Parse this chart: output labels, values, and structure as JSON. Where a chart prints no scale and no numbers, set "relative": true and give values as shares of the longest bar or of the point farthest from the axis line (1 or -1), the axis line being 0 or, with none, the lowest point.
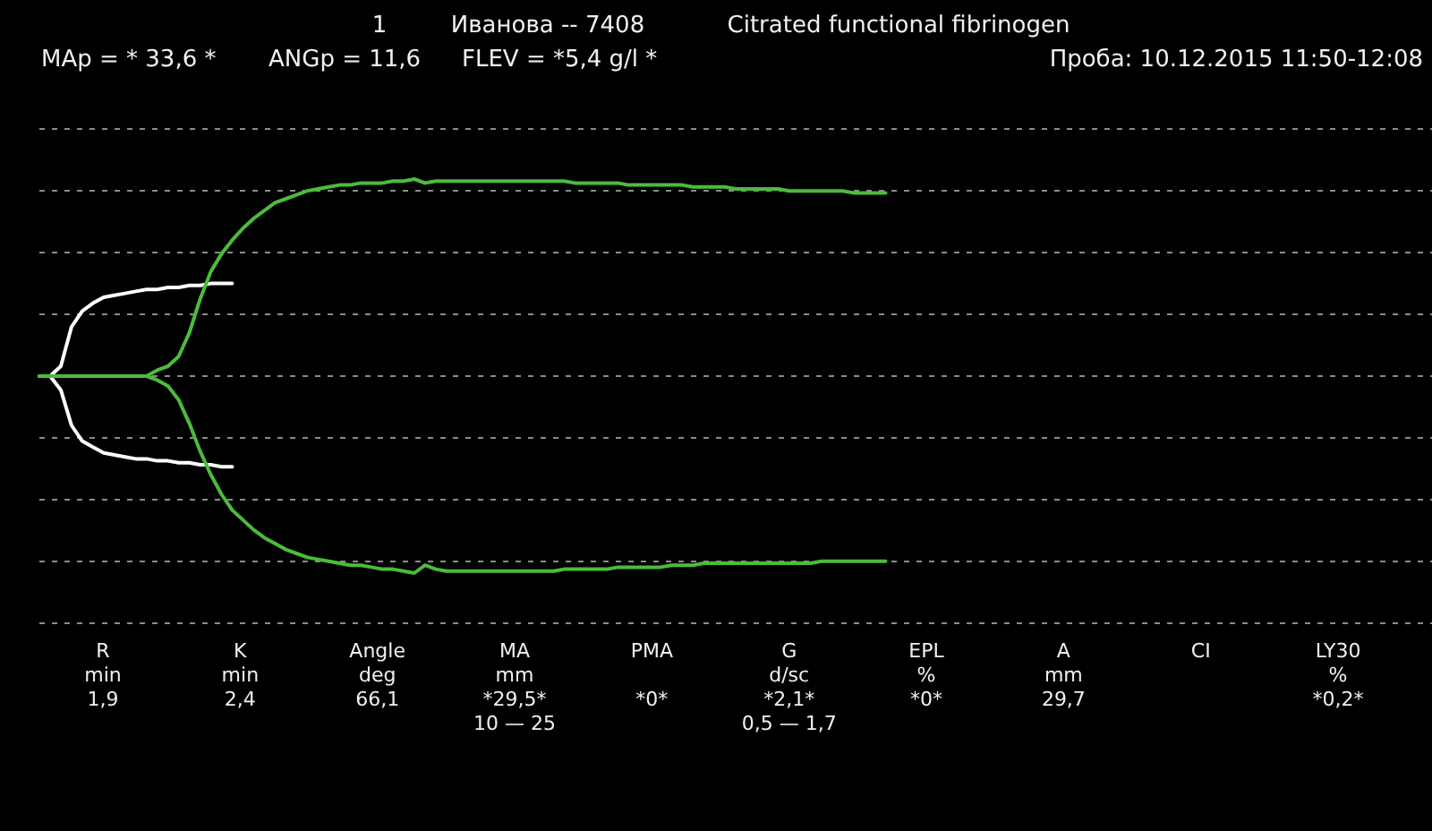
{
  "chart_data": {
    "type": "line",
    "title": "Citrated functional fibrinogen",
    "relative": true,
    "grid": "y",
    "categories": [
      null,
      null,
      null,
      null,
      null,
      null,
      null,
      null,
      null,
      null,
      null,
      null,
      null,
      null,
      null,
      null,
      null,
      null,
      null,
      null,
      null,
      null,
      null,
      null,
      null,
      null,
      null,
      null,
      null,
      null,
      null,
      null,
      null,
      null,
      null,
      null,
      null,
      null,
      null,
      null,
      null,
      null,
      null,
      null,
      null,
      null,
      null,
      null,
      null,
      null,
      null,
      null,
      null,
      null,
      null,
      null,
      null,
      null,
      null,
      null,
      null,
      null,
      null,
      null,
      null,
      null,
      null,
      null,
      null,
      null,
      null,
      null,
      null,
      null,
      null,
      null,
      null,
      null,
      null,
      null,
      null,
      null,
      null,
      null,
      null,
      null,
      null,
      null,
      null,
      null,
      null,
      null,
      null,
      null,
      null,
      null,
      null,
      null,
      null,
      null,
      null,
      null,
      null,
      null,
      null,
      null,
      null,
      null,
      null,
      null,
      null,
      null,
      null,
      null,
      null,
      null,
      null,
      null,
      null,
      null,
      null,
      null,
      null,
      null,
      null,
      null,
      null,
      null,
      null,
      null,
      null
    ],
    "series": [
      {
        "color": "#ffffff",
        "values": [
          0,
          0,
          0.05,
          0.25,
          0.33,
          0.37,
          0.4,
          0.41,
          0.42,
          0.43,
          0.44,
          0.44,
          0.45,
          0.45,
          0.46,
          0.46,
          0.47,
          0.47,
          0.47,
          null,
          null,
          null,
          null,
          null,
          null,
          null,
          null,
          null,
          null,
          null,
          null,
          null,
          null,
          null,
          null,
          null,
          null,
          null,
          null,
          null,
          null,
          null,
          null,
          null,
          null,
          null,
          null,
          null,
          null,
          null,
          null,
          null,
          null,
          null,
          null,
          null,
          null,
          null,
          null,
          null,
          null,
          null,
          null,
          null,
          null,
          null,
          null,
          null,
          null,
          null,
          null,
          null,
          null,
          null,
          null,
          null,
          null,
          null,
          null,
          null,
          null,
          null,
          null,
          null,
          null,
          null,
          null,
          null,
          null,
          null,
          null,
          null,
          null,
          null,
          null,
          null,
          null,
          null,
          null,
          null,
          null,
          null,
          null,
          null,
          null,
          null,
          null,
          null,
          null,
          null,
          null,
          null,
          null,
          null,
          null,
          null,
          null,
          null,
          null,
          null,
          null,
          null,
          null,
          null,
          null,
          null,
          null,
          null,
          null,
          null,
          null
        ]
      },
      {
        "color": "#ffffff",
        "values": [
          0,
          0,
          -0.07,
          -0.25,
          -0.33,
          -0.36,
          -0.39,
          -0.4,
          -0.41,
          -0.42,
          -0.42,
          -0.43,
          -0.43,
          -0.44,
          -0.44,
          -0.45,
          -0.45,
          -0.46,
          -0.46,
          null,
          null,
          null,
          null,
          null,
          null,
          null,
          null,
          null,
          null,
          null,
          null,
          null,
          null,
          null,
          null,
          null,
          null,
          null,
          null,
          null,
          null,
          null,
          null,
          null,
          null,
          null,
          null,
          null,
          null,
          null,
          null,
          null,
          null,
          null,
          null,
          null,
          null,
          null,
          null,
          null,
          null,
          null,
          null,
          null,
          null,
          null,
          null,
          null,
          null,
          null,
          null,
          null,
          null,
          null,
          null,
          null,
          null,
          null,
          null,
          null,
          null,
          null,
          null,
          null,
          null,
          null,
          null,
          null,
          null,
          null,
          null,
          null,
          null,
          null,
          null,
          null,
          null,
          null,
          null,
          null,
          null,
          null,
          null,
          null,
          null,
          null,
          null,
          null,
          null,
          null,
          null,
          null,
          null,
          null,
          null,
          null,
          null,
          null,
          null,
          null,
          null,
          null,
          null,
          null,
          null,
          null,
          null,
          null,
          null,
          null,
          null
        ]
      },
      {
        "color": "#4cbb3c",
        "values": [
          0,
          0,
          0,
          0,
          0,
          0,
          0,
          0,
          0,
          0,
          0,
          0.03,
          0.05,
          0.1,
          0.22,
          0.39,
          0.53,
          0.62,
          0.69,
          0.75,
          0.8,
          0.84,
          0.88,
          0.9,
          0.92,
          0.94,
          0.95,
          0.96,
          0.97,
          0.97,
          0.98,
          0.98,
          0.98,
          0.99,
          0.99,
          1.0,
          0.98,
          0.99,
          0.99,
          0.99,
          0.99,
          0.99,
          0.99,
          0.99,
          0.99,
          0.99,
          0.99,
          0.99,
          0.99,
          0.99,
          0.98,
          0.98,
          0.98,
          0.98,
          0.98,
          0.97,
          0.97,
          0.97,
          0.97,
          0.97,
          0.97,
          0.96,
          0.96,
          0.96,
          0.96,
          0.95,
          0.95,
          0.95,
          0.95,
          0.95,
          0.94,
          0.94,
          0.94,
          0.94,
          0.94,
          0.94,
          0.93,
          0.93,
          0.93,
          0.93,
          null,
          null,
          null,
          null,
          null,
          null,
          null,
          null,
          null,
          null,
          null,
          null,
          null,
          null,
          null,
          null,
          null,
          null,
          null,
          null,
          null,
          null,
          null,
          null,
          null,
          null,
          null,
          null,
          null,
          null,
          null,
          null,
          null,
          null,
          null,
          null,
          null,
          null,
          null,
          null,
          null,
          null,
          null,
          null,
          null,
          null,
          null,
          null,
          null,
          null,
          null
        ]
      },
      {
        "color": "#4cbb3c",
        "values": [
          0,
          0,
          0,
          0,
          0,
          0,
          0,
          0,
          0,
          0,
          0,
          -0.02,
          -0.05,
          -0.12,
          -0.24,
          -0.38,
          -0.5,
          -0.6,
          -0.68,
          -0.73,
          -0.78,
          -0.82,
          -0.85,
          -0.88,
          -0.9,
          -0.92,
          -0.93,
          -0.94,
          -0.95,
          -0.96,
          -0.96,
          -0.97,
          -0.98,
          -0.98,
          -0.99,
          -1.0,
          -0.96,
          -0.98,
          -0.99,
          -0.99,
          -0.99,
          -0.99,
          -0.99,
          -0.99,
          -0.99,
          -0.99,
          -0.99,
          -0.99,
          -0.99,
          -0.98,
          -0.98,
          -0.98,
          -0.98,
          -0.98,
          -0.97,
          -0.97,
          -0.97,
          -0.97,
          -0.97,
          -0.96,
          -0.96,
          -0.96,
          -0.95,
          -0.95,
          -0.95,
          -0.95,
          -0.95,
          -0.95,
          -0.95,
          -0.95,
          -0.95,
          -0.95,
          -0.95,
          -0.94,
          -0.94,
          -0.94,
          -0.94,
          -0.94,
          -0.94,
          -0.94,
          null,
          null,
          null,
          null,
          null,
          null,
          null,
          null,
          null,
          null,
          null,
          null,
          null,
          null,
          null,
          null,
          null,
          null,
          null,
          null,
          null,
          null,
          null,
          null,
          null,
          null,
          null,
          null,
          null,
          null,
          null,
          null,
          null,
          null,
          null,
          null,
          null,
          null,
          null,
          null,
          null,
          null,
          null,
          null,
          null,
          null,
          null,
          null,
          null,
          null,
          null
        ]
      }
    ],
    "annotations": [
      "1",
      "Иванова -- 7408",
      "MAp = * 33,6 *",
      "ANGp = 11,6",
      "FLEV = *5,4 g/l *",
      "Проба: 10.12.2015 11:50-12:08",
      "R\nmin\n1,9",
      "K\nmin\n2,4",
      "Angle\ndeg\n66,1",
      "MA\nmm\n*29,5*\n10 — 25",
      "PMA\n\n*0*",
      "G\nd/sc\n*2,1*\n0,5 — 1,7",
      "EPL\n%\n*0*",
      "A\nmm\n29,7",
      "CI",
      "LY30\n%\n*0,2*"
    ]
  }
}
